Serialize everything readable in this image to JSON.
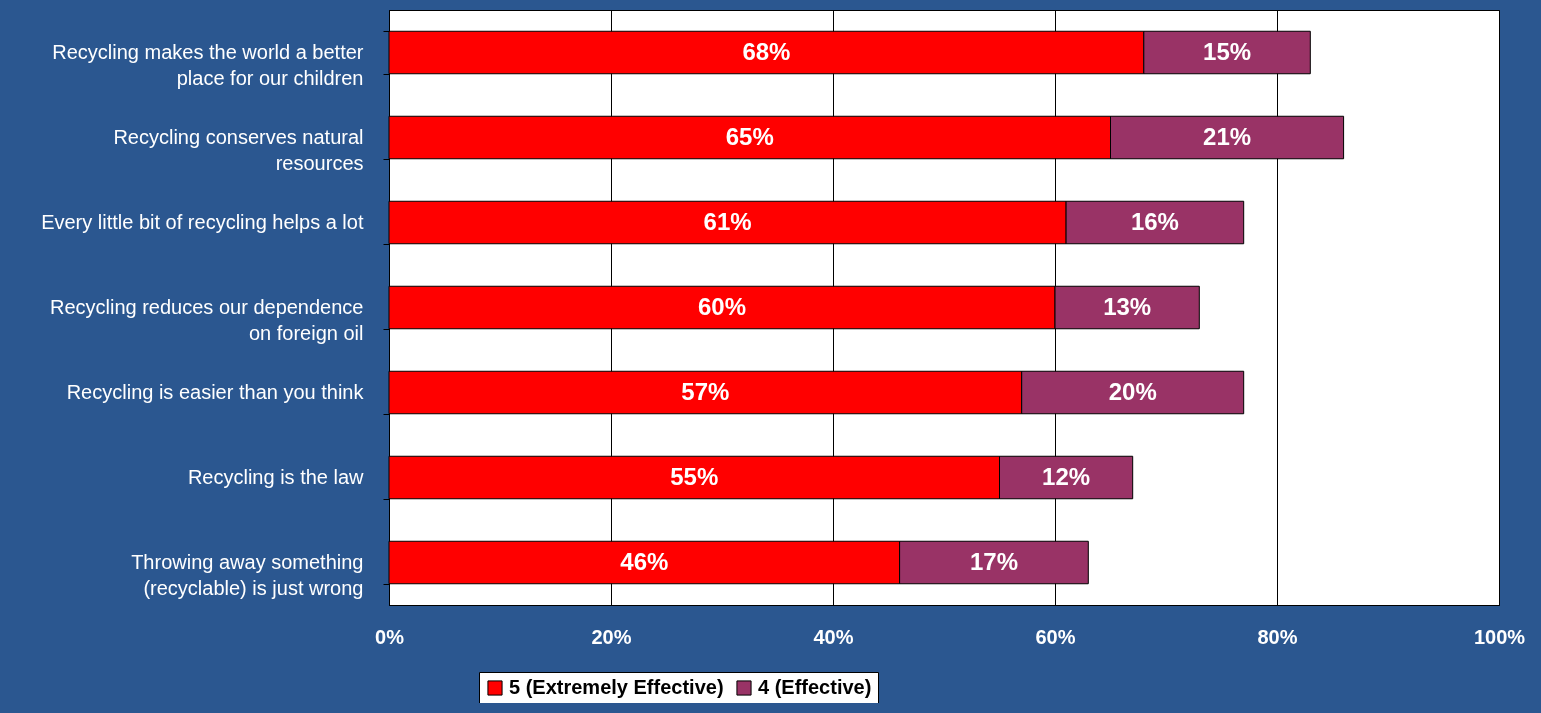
{
  "chart_data": {
    "type": "bar",
    "orientation": "horizontal",
    "stacked": true,
    "categories": [
      "Recycling makes the world a better place for our children",
      "Recycling conserves natural resources",
      "Every little bit of recycling helps a lot",
      "Recycling reduces our dependence on foreign oil",
      "Recycling is easier than you think",
      "Recycling is the law",
      "Throwing away something (recyclable) is just wrong"
    ],
    "series": [
      {
        "name": "5 (Extremely Effective)",
        "color": "#ff0000",
        "values": [
          68,
          65,
          61,
          60,
          57,
          55,
          46
        ],
        "value_labels": [
          "68%",
          "65%",
          "61%",
          "60%",
          "57%",
          "55%",
          "46%"
        ]
      },
      {
        "name": "4 (Effective)",
        "color": "#993366",
        "values": [
          15,
          21,
          16,
          13,
          20,
          12,
          17
        ],
        "value_labels": [
          "15%",
          "21%",
          "16%",
          "13%",
          "20%",
          "12%",
          "17%"
        ]
      }
    ],
    "xlim": [
      0,
      100
    ],
    "xticks": [
      {
        "value": 0,
        "label": "0%"
      },
      {
        "value": 20,
        "label": "20%"
      },
      {
        "value": 40,
        "label": "40%"
      },
      {
        "value": 60,
        "label": "60%"
      },
      {
        "value": 80,
        "label": "80%"
      },
      {
        "value": 100,
        "label": "100%"
      }
    ],
    "grid": "x",
    "legend": "bottom"
  }
}
